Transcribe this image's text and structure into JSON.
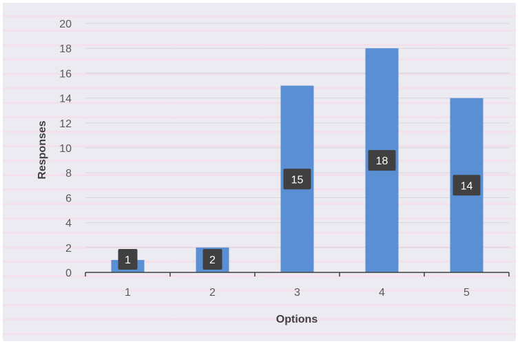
{
  "chart_data": {
    "type": "bar",
    "categories": [
      "1",
      "2",
      "3",
      "4",
      "5"
    ],
    "values": [
      1,
      2,
      15,
      18,
      14
    ],
    "data_labels": [
      "1",
      "2",
      "15",
      "18",
      "14"
    ],
    "xlabel": "Options",
    "ylabel": "Responses",
    "ylim": [
      0,
      20
    ],
    "yticks": [
      "0",
      "2",
      "4",
      "6",
      "8",
      "10",
      "12",
      "14",
      "16",
      "18",
      "20"
    ],
    "grid": true,
    "legend": "none",
    "colors": {
      "bar": "#5b8fd4",
      "gridline": "#d8d4dc",
      "data_label_box": "#404040",
      "background": "#ecebf2"
    }
  }
}
